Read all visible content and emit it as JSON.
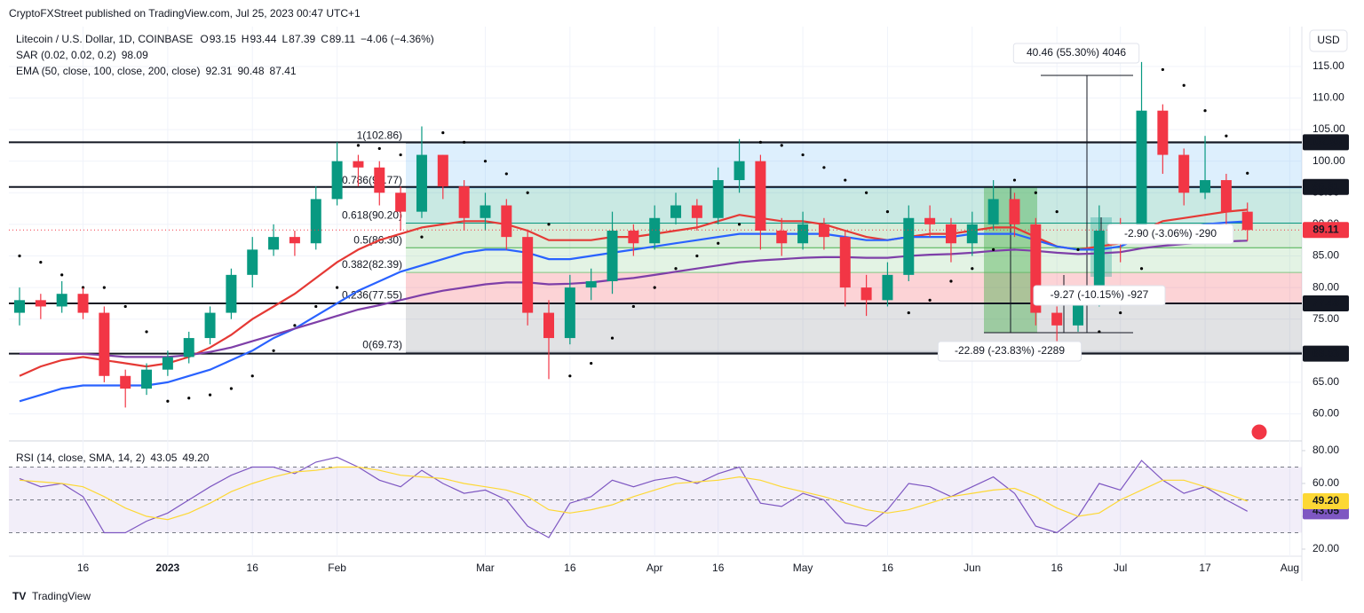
{
  "header": {
    "publisher": "CryptoFXStreet published on TradingView.com, Jul 25, 2023 00:47 UTC+1",
    "brand": "TradingView",
    "currency": "USD"
  },
  "legend": {
    "symbol": "Litecoin / U.S. Dollar, 1D, COINBASE",
    "ohlc": [
      {
        "label": "O",
        "value": "93.15"
      },
      {
        "label": "H",
        "value": "93.44"
      },
      {
        "label": "L",
        "value": "87.39"
      },
      {
        "label": "C",
        "value": "89.11"
      }
    ],
    "change": "−4.06 (−4.36%)",
    "sar_label": "SAR (0.02, 0.02, 0.2)",
    "sar_value": "98.09",
    "ema_label": "EMA (50, close, 100, close, 200, close)",
    "ema_values": [
      "92.31",
      "90.48",
      "87.41"
    ],
    "rsi_label": "RSI (14, close, SMA, 14, 2)",
    "rsi_values": [
      "43.05",
      "49.20"
    ]
  },
  "chart_data": [
    {
      "type": "candlestick",
      "categories": [
        null,
        null,
        null,
        "16",
        null,
        null,
        null,
        "2023",
        null,
        null,
        null,
        "16",
        null,
        null,
        null,
        "Feb",
        null,
        null,
        null,
        null,
        null,
        null,
        "Mar",
        null,
        null,
        null,
        "16",
        null,
        null,
        null,
        "Apr",
        null,
        null,
        "16",
        null,
        null,
        null,
        "May",
        null,
        null,
        null,
        "16",
        null,
        null,
        null,
        "Jun",
        null,
        null,
        null,
        "16",
        null,
        null,
        "Jul",
        null,
        null,
        null,
        "17",
        null,
        null,
        null,
        "Aug"
      ],
      "open": [
        76,
        78,
        77,
        79,
        76,
        66,
        64,
        67,
        69,
        72,
        76,
        82,
        86,
        88,
        87,
        94,
        100,
        99,
        95,
        92,
        101,
        96,
        91,
        93,
        88,
        76,
        72,
        80,
        81,
        89,
        87,
        91,
        93,
        91,
        97,
        100,
        89,
        87,
        90,
        88,
        80,
        78,
        82,
        91,
        90,
        87,
        90,
        94,
        90,
        76,
        74,
        78,
        89,
        88,
        108,
        101,
        95,
        97,
        92,
        null,
        null
      ],
      "high": [
        80,
        79,
        81,
        80,
        77,
        67,
        68,
        70,
        73,
        77,
        83,
        88,
        90,
        89,
        96,
        103,
        101,
        100,
        96,
        105.5,
        101,
        97,
        95,
        94,
        89,
        78,
        82,
        83,
        92,
        90,
        93,
        95,
        94,
        99,
        103.5,
        101,
        91,
        92,
        91,
        89,
        82,
        84,
        93,
        93,
        91,
        92,
        97,
        95,
        91,
        77,
        80,
        93,
        91,
        115.7,
        109,
        102,
        104,
        98,
        93.44,
        null,
        null
      ],
      "low": [
        74,
        75,
        76,
        75,
        65,
        61,
        63,
        66,
        68,
        71,
        75,
        80,
        85,
        85,
        86,
        93,
        96,
        93,
        89,
        91,
        94,
        89,
        89,
        86,
        74,
        65.5,
        71,
        78,
        79,
        85,
        86,
        90,
        89,
        90,
        95,
        86,
        85,
        86,
        86,
        77,
        75.5,
        77,
        81,
        88,
        84,
        85,
        89,
        88,
        74,
        71,
        73,
        77,
        84,
        87,
        98,
        93,
        94,
        90,
        87.39,
        null,
        null
      ],
      "close": [
        78,
        77,
        79,
        76,
        66,
        64,
        67,
        69,
        72,
        76,
        82,
        86,
        88,
        87,
        94,
        100,
        99,
        95,
        92,
        101,
        96,
        91,
        93,
        88,
        76,
        72,
        80,
        81,
        89,
        87,
        91,
        93,
        91,
        97,
        100,
        89,
        87,
        90,
        88,
        80,
        78,
        82,
        91,
        90,
        87,
        90,
        94,
        90,
        76,
        74,
        78,
        89,
        88,
        108,
        101,
        95,
        97,
        92,
        89.11,
        null,
        null
      ],
      "up_color": "#089981",
      "down_color": "#f23645",
      "lines": [
        {
          "color": "#e53935",
          "values": [
            66,
            67.5,
            68.5,
            69,
            68.5,
            68,
            67.5,
            68,
            69,
            70.5,
            72.5,
            75,
            77,
            79,
            81.5,
            84,
            86,
            87.5,
            88.5,
            89.5,
            90,
            90.5,
            90.5,
            90,
            89,
            87.5,
            87.5,
            87.5,
            88,
            88,
            88.5,
            89,
            89.5,
            90.5,
            91.5,
            91,
            90.5,
            90.5,
            90,
            89,
            88,
            87.5,
            88,
            88.5,
            88.5,
            89,
            89.5,
            89.5,
            88,
            86.5,
            86,
            86.5,
            87,
            89,
            90.5,
            91,
            91.5,
            92,
            92.31,
            null,
            null
          ]
        },
        {
          "color": "#2962ff",
          "values": [
            62,
            63,
            64,
            64.5,
            64.5,
            64.5,
            64.5,
            65,
            66,
            67,
            68.5,
            70,
            72,
            73.5,
            75.5,
            77.5,
            79.5,
            81,
            82.5,
            83.5,
            84.5,
            85.5,
            86,
            86,
            85.5,
            84.5,
            84.5,
            85,
            85.5,
            86,
            86.5,
            87,
            87.5,
            88,
            88.5,
            88.5,
            88.5,
            88.5,
            88.5,
            88,
            87.5,
            87.5,
            88,
            88,
            88,
            88.5,
            88.5,
            88.5,
            87.5,
            86.5,
            86,
            86,
            86.5,
            88,
            89,
            89.5,
            90,
            90.3,
            90.48,
            null,
            null
          ]
        },
        {
          "color": "#7e3fa8",
          "values": [
            69.5,
            69.5,
            69.5,
            69.5,
            69.3,
            69,
            69,
            69,
            69.3,
            69.8,
            70.5,
            71.5,
            72.5,
            73.5,
            74.5,
            75.5,
            76.5,
            77.2,
            78,
            78.8,
            79.5,
            80,
            80.5,
            80.8,
            80.8,
            80.5,
            80.6,
            80.8,
            81.2,
            81.5,
            82,
            82.5,
            83,
            83.5,
            84,
            84.3,
            84.5,
            84.7,
            84.8,
            84.8,
            84.7,
            84.7,
            85,
            85.2,
            85.3,
            85.5,
            85.8,
            86,
            85.8,
            85.5,
            85.3,
            85.4,
            85.6,
            86.2,
            86.6,
            86.9,
            87.1,
            87.3,
            87.41,
            null,
            null
          ]
        }
      ],
      "sar": {
        "color": "#000000",
        "values": [
          85,
          84,
          82,
          80,
          80,
          77,
          73,
          62,
          62.5,
          63,
          64,
          66,
          70,
          74,
          77,
          80,
          102.5,
          102,
          101,
          88,
          104.5,
          103,
          100,
          98,
          95,
          90,
          66,
          68,
          72,
          77,
          80,
          83,
          85,
          87,
          90,
          103,
          102.5,
          101,
          99,
          97,
          95,
          92,
          76,
          78,
          81,
          83,
          86,
          97,
          95,
          92,
          86,
          73,
          76,
          83,
          114.5,
          112,
          108,
          104,
          98.09,
          null,
          null
        ]
      },
      "ylim": [
        56,
        121.3
      ],
      "yticks": [
        {
          "value": 60,
          "label": "60.00"
        },
        {
          "value": 65,
          "label": "65.00"
        },
        {
          "value": 70,
          "label": "70.00"
        },
        {
          "value": 75,
          "label": "75.00"
        },
        {
          "value": 80,
          "label": "80.00"
        },
        {
          "value": 85,
          "label": "85.00"
        },
        {
          "value": 90,
          "label": "90.00"
        },
        {
          "value": 95,
          "label": "95.00"
        },
        {
          "value": 100,
          "label": "100.00"
        },
        {
          "value": 105,
          "label": "105.00"
        },
        {
          "value": 110,
          "label": "110.00"
        },
        {
          "value": 115,
          "label": "115.00"
        }
      ],
      "levels": [
        102.99,
        95.91,
        77.48,
        69.53
      ],
      "last_price": 89.11,
      "fib": [
        {
          "value": 102.86,
          "label": "1(102.86)",
          "color": "#787b86"
        },
        {
          "value": 95.77,
          "label": "0.786(95.77)",
          "color": "#64b5f6"
        },
        {
          "value": 90.2,
          "label": "0.618(90.20)",
          "color": "#089981"
        },
        {
          "value": 86.3,
          "label": "0.5(86.30)",
          "color": "#4caf50"
        },
        {
          "value": 82.39,
          "label": "0.382(82.39)",
          "color": "#81c784"
        },
        {
          "value": 77.55,
          "label": "0.236(77.55)",
          "color": "#f23645"
        },
        {
          "value": 69.73,
          "label": "0(69.73)",
          "color": "#787b86"
        }
      ],
      "annotations": [
        "40.46 (55.30%) 4046",
        "-2.90 (-3.06%) -290",
        "-9.27 (-10.15%) -927",
        "-22.89 (-23.83%) -2289"
      ]
    },
    {
      "type": "line",
      "series": [
        {
          "color": "#7e57c2",
          "values": [
            63,
            58,
            60,
            52,
            30,
            30,
            37,
            42,
            50,
            58,
            65,
            70,
            70,
            66,
            73,
            76,
            70,
            62,
            58,
            68,
            60,
            54,
            56,
            50,
            34,
            27,
            48,
            52,
            62,
            58,
            62,
            64,
            60,
            66,
            70,
            48,
            46,
            54,
            50,
            36,
            34,
            44,
            60,
            58,
            52,
            58,
            64,
            54,
            34,
            30,
            40,
            60,
            56,
            74,
            62,
            54,
            58,
            50,
            43.05,
            null,
            null
          ]
        },
        {
          "color": "#fdd835",
          "values": [
            62,
            61,
            60,
            58,
            52,
            45,
            40,
            38,
            42,
            48,
            55,
            60,
            64,
            67,
            68,
            70,
            70,
            68,
            65,
            64,
            63,
            60,
            58,
            56,
            52,
            44,
            42,
            44,
            47,
            52,
            56,
            60,
            61,
            62,
            64,
            62,
            58,
            55,
            52,
            48,
            44,
            42,
            44,
            48,
            52,
            54,
            56,
            57,
            52,
            45,
            40,
            42,
            50,
            56,
            62,
            62,
            58,
            54,
            49.2,
            null,
            null
          ]
        }
      ],
      "ylim": [
        16.2,
        84.3
      ],
      "yticks": [
        {
          "value": 20,
          "label": "20.00"
        },
        {
          "value": 40,
          "label": "40.00"
        },
        {
          "value": 60,
          "label": "60.00"
        },
        {
          "value": 80,
          "label": "80.00"
        }
      ],
      "hlines": [
        70,
        50,
        30
      ]
    }
  ]
}
